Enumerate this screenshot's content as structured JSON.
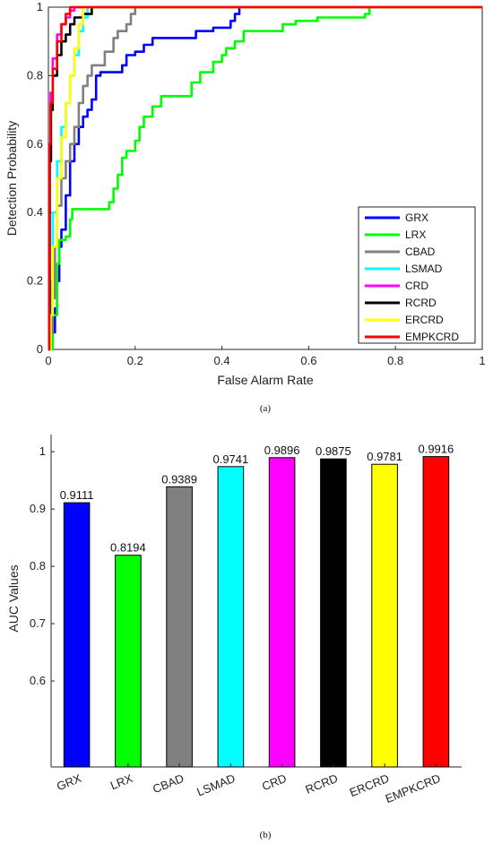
{
  "figure_a": {
    "caption": "(a)",
    "chart_data": {
      "type": "line",
      "xlabel": "False Alarm Rate",
      "ylabel": "Detection Probability",
      "xlim": [
        0,
        1
      ],
      "ylim": [
        0,
        1
      ],
      "xticks": [
        "0",
        "0.2",
        "0.4",
        "0.6",
        "0.8",
        "1"
      ],
      "yticks": [
        "0",
        "0.2",
        "0.4",
        "0.6",
        "0.8",
        "1"
      ],
      "legend_position": "bottom-right",
      "series": [
        {
          "name": "GRX",
          "color": "#0000ff",
          "points": [
            [
              0,
              0
            ],
            [
              0.005,
              0.02
            ],
            [
              0.01,
              0.05
            ],
            [
              0.015,
              0.12
            ],
            [
              0.02,
              0.2
            ],
            [
              0.025,
              0.3
            ],
            [
              0.03,
              0.35
            ],
            [
              0.04,
              0.45
            ],
            [
              0.05,
              0.55
            ],
            [
              0.06,
              0.6
            ],
            [
              0.07,
              0.65
            ],
            [
              0.08,
              0.68
            ],
            [
              0.09,
              0.7
            ],
            [
              0.1,
              0.73
            ],
            [
              0.11,
              0.8
            ],
            [
              0.12,
              0.81
            ],
            [
              0.16,
              0.81
            ],
            [
              0.17,
              0.83
            ],
            [
              0.18,
              0.86
            ],
            [
              0.2,
              0.87
            ],
            [
              0.22,
              0.89
            ],
            [
              0.24,
              0.91
            ],
            [
              0.33,
              0.91
            ],
            [
              0.34,
              0.93
            ],
            [
              0.38,
              0.94
            ],
            [
              0.42,
              0.96
            ],
            [
              0.43,
              0.98
            ],
            [
              0.44,
              1.0
            ],
            [
              1,
              1.0
            ]
          ]
        },
        {
          "name": "LRX",
          "color": "#00ff00",
          "points": [
            [
              0,
              0
            ],
            [
              0.01,
              0.1
            ],
            [
              0.02,
              0.25
            ],
            [
              0.025,
              0.32
            ],
            [
              0.04,
              0.33
            ],
            [
              0.05,
              0.38
            ],
            [
              0.055,
              0.41
            ],
            [
              0.13,
              0.41
            ],
            [
              0.14,
              0.43
            ],
            [
              0.15,
              0.47
            ],
            [
              0.16,
              0.51
            ],
            [
              0.17,
              0.56
            ],
            [
              0.18,
              0.58
            ],
            [
              0.2,
              0.61
            ],
            [
              0.21,
              0.65
            ],
            [
              0.22,
              0.68
            ],
            [
              0.24,
              0.71
            ],
            [
              0.26,
              0.74
            ],
            [
              0.32,
              0.74
            ],
            [
              0.33,
              0.78
            ],
            [
              0.35,
              0.81
            ],
            [
              0.38,
              0.84
            ],
            [
              0.4,
              0.86
            ],
            [
              0.41,
              0.88
            ],
            [
              0.43,
              0.9
            ],
            [
              0.45,
              0.93
            ],
            [
              0.52,
              0.93
            ],
            [
              0.54,
              0.95
            ],
            [
              0.57,
              0.96
            ],
            [
              0.62,
              0.97
            ],
            [
              0.73,
              0.98
            ],
            [
              0.74,
              1.0
            ],
            [
              1,
              1.0
            ]
          ]
        },
        {
          "name": "CBAD",
          "color": "#808080",
          "points": [
            [
              0,
              0
            ],
            [
              0.005,
              0.05
            ],
            [
              0.01,
              0.15
            ],
            [
              0.015,
              0.3
            ],
            [
              0.02,
              0.42
            ],
            [
              0.03,
              0.5
            ],
            [
              0.04,
              0.55
            ],
            [
              0.05,
              0.6
            ],
            [
              0.06,
              0.65
            ],
            [
              0.07,
              0.72
            ],
            [
              0.08,
              0.77
            ],
            [
              0.09,
              0.8
            ],
            [
              0.1,
              0.83
            ],
            [
              0.12,
              0.83
            ],
            [
              0.13,
              0.87
            ],
            [
              0.15,
              0.91
            ],
            [
              0.16,
              0.93
            ],
            [
              0.18,
              0.95
            ],
            [
              0.19,
              0.98
            ],
            [
              0.2,
              1.0
            ],
            [
              1,
              1.0
            ]
          ]
        },
        {
          "name": "LSMAD",
          "color": "#00ffff",
          "points": [
            [
              0,
              0
            ],
            [
              0.005,
              0.2
            ],
            [
              0.01,
              0.4
            ],
            [
              0.02,
              0.55
            ],
            [
              0.03,
              0.65
            ],
            [
              0.04,
              0.72
            ],
            [
              0.05,
              0.8
            ],
            [
              0.06,
              0.86
            ],
            [
              0.07,
              0.93
            ],
            [
              0.08,
              0.97
            ],
            [
              0.09,
              1.0
            ],
            [
              1,
              1.0
            ]
          ]
        },
        {
          "name": "CRD",
          "color": "#ff00ff",
          "points": [
            [
              0,
              0
            ],
            [
              0.002,
              0.6
            ],
            [
              0.005,
              0.75
            ],
            [
              0.01,
              0.85
            ],
            [
              0.02,
              0.92
            ],
            [
              0.03,
              0.95
            ],
            [
              0.04,
              0.97
            ],
            [
              0.05,
              0.99
            ],
            [
              0.06,
              1.0
            ],
            [
              1,
              1.0
            ]
          ]
        },
        {
          "name": "RCRD",
          "color": "#000000",
          "points": [
            [
              0,
              0
            ],
            [
              0.003,
              0.55
            ],
            [
              0.006,
              0.7
            ],
            [
              0.01,
              0.8
            ],
            [
              0.02,
              0.86
            ],
            [
              0.03,
              0.9
            ],
            [
              0.04,
              0.92
            ],
            [
              0.05,
              0.95
            ],
            [
              0.06,
              0.97
            ],
            [
              0.08,
              0.98
            ],
            [
              0.1,
              1.0
            ],
            [
              1,
              1.0
            ]
          ]
        },
        {
          "name": "ERCRD",
          "color": "#ffff00",
          "points": [
            [
              0,
              0
            ],
            [
              0.005,
              0.1
            ],
            [
              0.01,
              0.3
            ],
            [
              0.02,
              0.5
            ],
            [
              0.03,
              0.62
            ],
            [
              0.04,
              0.72
            ],
            [
              0.05,
              0.8
            ],
            [
              0.06,
              0.88
            ],
            [
              0.07,
              0.95
            ],
            [
              0.08,
              1.0
            ],
            [
              1,
              1.0
            ]
          ]
        },
        {
          "name": "EMPKCRD",
          "color": "#ff0000",
          "points": [
            [
              0,
              0
            ],
            [
              0.002,
              0.6
            ],
            [
              0.005,
              0.72
            ],
            [
              0.01,
              0.82
            ],
            [
              0.02,
              0.9
            ],
            [
              0.03,
              0.95
            ],
            [
              0.04,
              0.98
            ],
            [
              0.05,
              1.0
            ],
            [
              1,
              1.0
            ]
          ]
        }
      ]
    }
  },
  "figure_b": {
    "caption": "(b)",
    "chart_data": {
      "type": "bar",
      "ylabel": "AUC Values",
      "ylim": [
        0.45,
        1.03
      ],
      "yticks": [
        "0.6",
        "0.7",
        "0.8",
        "0.9",
        "1"
      ],
      "categories": [
        "GRX",
        "LRX",
        "CBAD",
        "LSMAD",
        "CRD",
        "RCRD",
        "ERCRD",
        "EMPKCRD"
      ],
      "values": [
        0.9111,
        0.8194,
        0.9389,
        0.9741,
        0.9896,
        0.9875,
        0.9781,
        0.9916
      ],
      "labels": [
        "0.9111",
        "0.8194",
        "0.9389",
        "0.9741",
        "0.9896",
        "0.9875",
        "0.9781",
        "0.9916"
      ],
      "colors": [
        "#0000ff",
        "#00ff00",
        "#808080",
        "#00ffff",
        "#ff00ff",
        "#000000",
        "#ffff00",
        "#ff0000"
      ]
    }
  }
}
